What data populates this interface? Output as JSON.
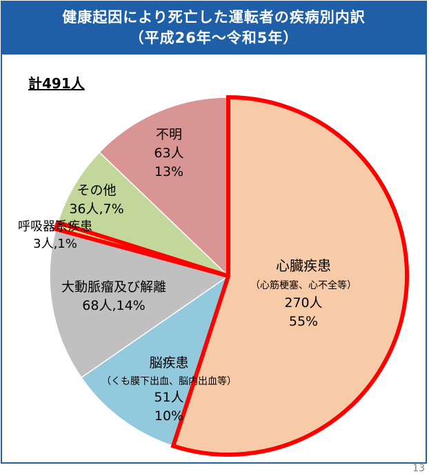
{
  "header": {
    "title_line1": "健康起因により死亡した運転者の疾病別内訳",
    "title_line2": "（平成26年～令和5年）"
  },
  "total_label": "計491人",
  "page_number": "13",
  "colors": {
    "header_bg": "#1f5fa8",
    "highlight_border": "#ff0000",
    "slice_outline": "#ffffff"
  },
  "chart_data": {
    "type": "pie",
    "total": 491,
    "start_angle_deg": 0,
    "direction": "clockwise",
    "slices": [
      {
        "name": "心臓疾患",
        "detail": "（心筋梗塞、心不全等）",
        "count_label": "270人",
        "percent_label": "55%",
        "value": 270,
        "color": "#f8cba8",
        "highlight": true
      },
      {
        "name": "脳疾患",
        "detail": "（くも膜下出血、脳内出血等）",
        "count_label": "51人",
        "percent_label": "10%",
        "value": 51,
        "color": "#93c9dc",
        "highlight": false
      },
      {
        "name": "大動脈瘤及び解離",
        "detail": "",
        "count_label": "68人,14%",
        "percent_label": "",
        "value": 68,
        "color": "#c0c0c0",
        "highlight": false
      },
      {
        "name": "呼吸器系疾患",
        "detail": "",
        "count_label": "3人,1%",
        "percent_label": "",
        "value": 3,
        "color": "#f2e08a",
        "highlight": true
      },
      {
        "name": "その他",
        "detail": "",
        "count_label": "36人,7%",
        "percent_label": "",
        "value": 36,
        "color": "#c4d79b",
        "highlight": false
      },
      {
        "name": "不明",
        "detail": "",
        "count_label": "63人",
        "percent_label": "13%",
        "value": 63,
        "color": "#d99594",
        "highlight": false
      }
    ]
  }
}
